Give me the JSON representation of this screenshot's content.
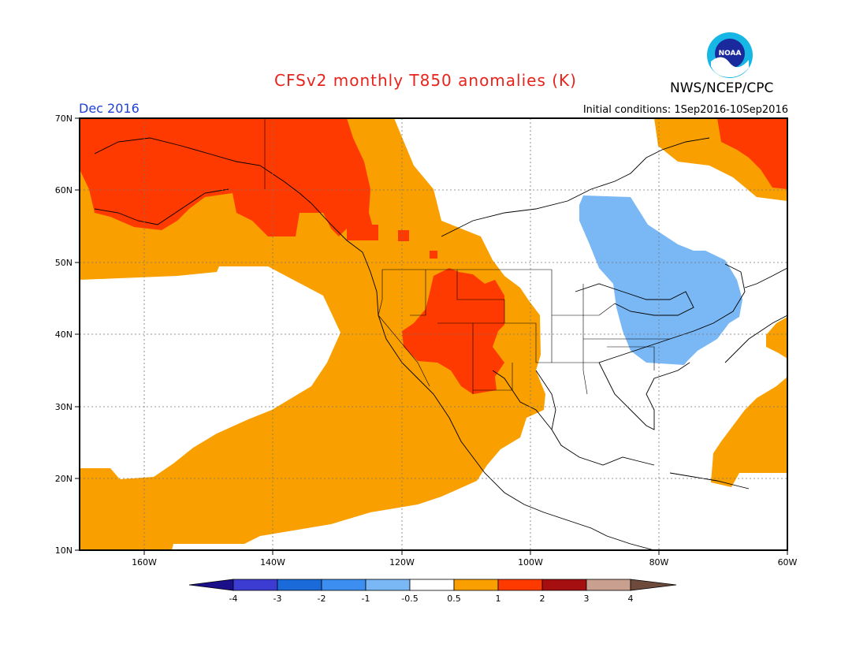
{
  "header": {
    "title": "CFSv2 monthly T850 anomalies (K)",
    "org": "NWS/NCEP/CPC",
    "period": "Dec 2016",
    "initial_conditions": "Initial conditions: 1Sep2016-10Sep2016",
    "logo_text": "NOAA"
  },
  "map": {
    "lat_labels": [
      "70N",
      "60N",
      "50N",
      "40N",
      "30N",
      "20N",
      "10N"
    ],
    "lon_labels": [
      "160W",
      "140W",
      "120W",
      "100W",
      "80W",
      "60W"
    ]
  },
  "colorbar": {
    "labels": [
      "-4",
      "-3",
      "-2",
      "-1",
      "-0.5",
      "0.5",
      "1",
      "2",
      "3",
      "4"
    ],
    "colors": [
      "#1c0f8a",
      "#3c3cd2",
      "#1a6bd9",
      "#3c8ff0",
      "#7ab8f5",
      "#ffffff",
      "#f9a000",
      "#ff3a00",
      "#a50f0f",
      "#c9a08f",
      "#6e4a3d"
    ]
  }
}
